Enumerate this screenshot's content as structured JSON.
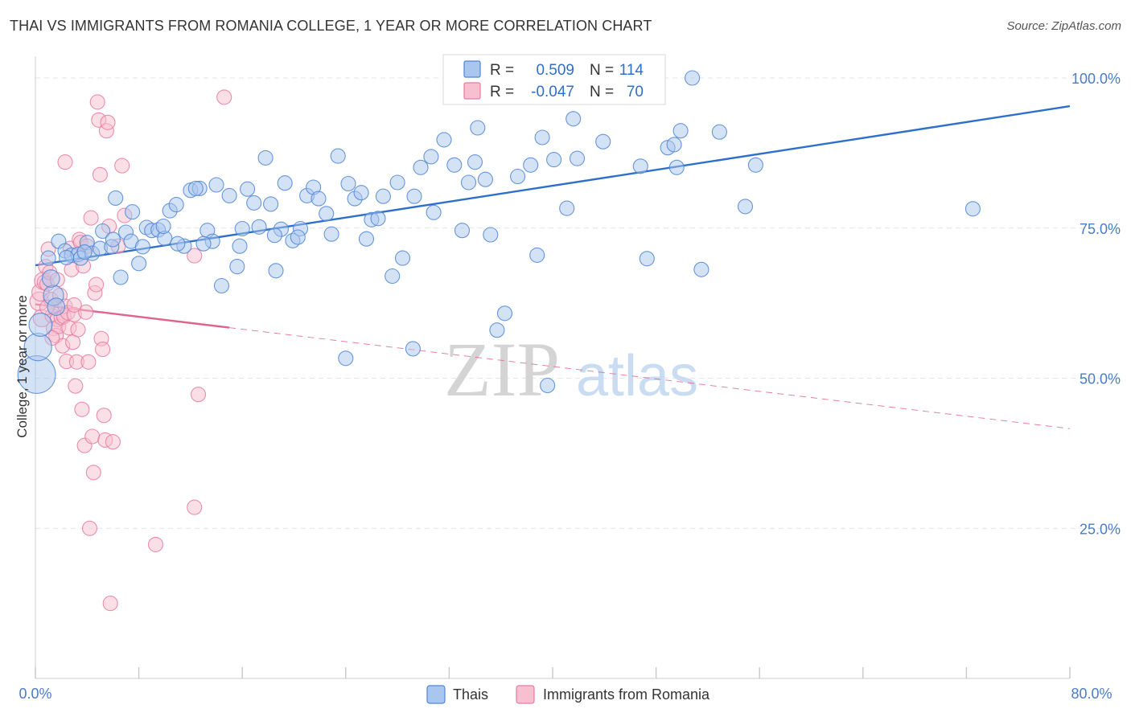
{
  "header": {
    "title": "THAI VS IMMIGRANTS FROM ROMANIA COLLEGE, 1 YEAR OR MORE CORRELATION CHART",
    "source": "Source: ZipAtlas.com"
  },
  "watermark": {
    "zip": "ZIP",
    "atlas": "atlas"
  },
  "colors": {
    "blue_fill": "#a9c6ee",
    "blue_stroke": "#4f86d4",
    "blue_line": "#2f6fcc",
    "pink_fill": "#f7bfd0",
    "pink_stroke": "#e67ba0",
    "pink_line": "#e0628e",
    "tick_text": "#4a7cc9",
    "grid": "#e4e4e4"
  },
  "legend": {
    "rows": [
      {
        "r_label": "R =",
        "r_value": "0.509",
        "n_label": "N =",
        "n_value": "114"
      },
      {
        "r_label": "R =",
        "r_value": "-0.047",
        "n_label": "N =",
        "n_value": "70"
      }
    ]
  },
  "chart_data": {
    "type": "scatter",
    "title": "THAI VS IMMIGRANTS FROM ROMANIA COLLEGE, 1 YEAR OR MORE CORRELATION CHART",
    "xlabel": "",
    "ylabel": "College, 1 year or more",
    "xlim": [
      0,
      80
    ],
    "ylim": [
      0,
      103
    ],
    "x_tick_labels": [
      "0.0%",
      "80.0%"
    ],
    "x_minor_ticks": [
      0,
      8,
      16,
      24,
      32,
      40,
      48,
      56,
      64,
      72,
      80
    ],
    "y_ticks": [
      25,
      50,
      75,
      100
    ],
    "y_tick_labels": [
      "25.0%",
      "50.0%",
      "75.0%",
      "100.0%"
    ],
    "grid": true,
    "legend_position": "top-center",
    "series": [
      {
        "name": "Thais",
        "color": "#a9c6ee",
        "r": 0.509,
        "n": 114,
        "trend": {
          "x": [
            0,
            80
          ],
          "y": [
            68.8,
            95.3
          ],
          "dashed_from": null
        },
        "points": [
          [
            0.1,
            50.6,
            2.6
          ],
          [
            0.2,
            55.2,
            1.9
          ],
          [
            0.4,
            58.9,
            1.6
          ],
          [
            1.4,
            63.8,
            1.4
          ],
          [
            1.6,
            61.9,
            1.2
          ],
          [
            1.2,
            66.6,
            1.2
          ],
          [
            1.0,
            70.0,
            1.0
          ],
          [
            1.8,
            72.8,
            1.0
          ],
          [
            2.3,
            71.2,
            1.0
          ],
          [
            2.8,
            70.5,
            1.0
          ],
          [
            3.3,
            70.6,
            1.0
          ],
          [
            3.5,
            70.0,
            1.0
          ],
          [
            4.0,
            72.6,
            1.0
          ],
          [
            4.4,
            70.8,
            1.0
          ],
          [
            5.0,
            71.6,
            1.0
          ],
          [
            5.2,
            74.5,
            1.0
          ],
          [
            5.9,
            71.9,
            1.0
          ],
          [
            6.2,
            80.0,
            1.0
          ],
          [
            6.6,
            66.8,
            1.0
          ],
          [
            7.0,
            74.3,
            1.0
          ],
          [
            7.4,
            72.8,
            1.0
          ],
          [
            7.5,
            77.7,
            1.0
          ],
          [
            8.0,
            69.1,
            1.0
          ],
          [
            8.3,
            71.9,
            1.0
          ],
          [
            8.6,
            75.1,
            1.0
          ],
          [
            9.0,
            74.6,
            1.0
          ],
          [
            9.5,
            74.7,
            1.0
          ],
          [
            10.0,
            73.3,
            1.0
          ],
          [
            10.4,
            77.9,
            1.0
          ],
          [
            10.9,
            78.9,
            1.0
          ],
          [
            11.5,
            72.0,
            1.0
          ],
          [
            12.0,
            81.3,
            1.0
          ],
          [
            12.7,
            81.6,
            1.0
          ],
          [
            13.3,
            74.6,
            1.0
          ],
          [
            13.7,
            72.8,
            1.0
          ],
          [
            14.0,
            82.2,
            1.0
          ],
          [
            14.4,
            65.4,
            1.0
          ],
          [
            15.0,
            80.4,
            1.0
          ],
          [
            15.6,
            68.6,
            1.0
          ],
          [
            16.0,
            74.9,
            1.0
          ],
          [
            16.4,
            81.5,
            1.0
          ],
          [
            16.9,
            79.2,
            1.0
          ],
          [
            17.3,
            75.2,
            1.0
          ],
          [
            17.8,
            86.7,
            1.0
          ],
          [
            18.2,
            79.0,
            1.0
          ],
          [
            18.6,
            67.9,
            1.0
          ],
          [
            19.0,
            74.8,
            1.0
          ],
          [
            19.3,
            82.5,
            1.0
          ],
          [
            19.9,
            72.9,
            1.0
          ],
          [
            20.5,
            74.9,
            1.0
          ],
          [
            21.0,
            80.4,
            1.0
          ],
          [
            21.5,
            81.8,
            1.0
          ],
          [
            21.9,
            79.9,
            1.0
          ],
          [
            22.5,
            77.4,
            1.0
          ],
          [
            22.9,
            74.0,
            1.0
          ],
          [
            23.4,
            87.0,
            1.0
          ],
          [
            24.2,
            82.4,
            1.0
          ],
          [
            24.7,
            79.9,
            1.0
          ],
          [
            25.2,
            80.9,
            1.0
          ],
          [
            25.6,
            73.2,
            1.0
          ],
          [
            26.0,
            76.4,
            1.0
          ],
          [
            26.5,
            76.6,
            1.0
          ],
          [
            26.9,
            80.3,
            1.0
          ],
          [
            27.6,
            67.0,
            1.0
          ],
          [
            28.0,
            82.6,
            1.0
          ],
          [
            28.4,
            70.0,
            1.0
          ],
          [
            29.3,
            80.3,
            1.0
          ],
          [
            29.8,
            85.1,
            1.0
          ],
          [
            30.6,
            86.9,
            1.0
          ],
          [
            30.8,
            77.6,
            1.0
          ],
          [
            31.6,
            89.7,
            1.0
          ],
          [
            32.4,
            85.5,
            1.0
          ],
          [
            33.0,
            74.6,
            1.0
          ],
          [
            33.5,
            82.6,
            1.0
          ],
          [
            34.0,
            86.0,
            1.0
          ],
          [
            34.2,
            91.7,
            1.0
          ],
          [
            34.8,
            83.1,
            1.0
          ],
          [
            35.2,
            73.9,
            1.0
          ],
          [
            35.7,
            58.0,
            1.0
          ],
          [
            36.3,
            60.8,
            1.0
          ],
          [
            37.3,
            83.6,
            1.0
          ],
          [
            38.3,
            85.5,
            1.0
          ],
          [
            38.8,
            70.5,
            1.0
          ],
          [
            39.2,
            90.1,
            1.0
          ],
          [
            39.6,
            48.8,
            1.0
          ],
          [
            40.1,
            86.4,
            1.0
          ],
          [
            41.1,
            78.3,
            1.0
          ],
          [
            41.6,
            93.2,
            1.0
          ],
          [
            41.9,
            86.6,
            1.0
          ],
          [
            43.9,
            89.4,
            1.0
          ],
          [
            46.8,
            85.3,
            1.0
          ],
          [
            47.3,
            69.9,
            1.0
          ],
          [
            48.9,
            88.4,
            1.0
          ],
          [
            49.4,
            88.9,
            1.0
          ],
          [
            49.6,
            85.1,
            1.0
          ],
          [
            49.9,
            91.2,
            1.0
          ],
          [
            50.8,
            100.0,
            1.0
          ],
          [
            51.5,
            68.1,
            1.0
          ],
          [
            52.9,
            91.0,
            1.0
          ],
          [
            54.9,
            78.6,
            1.0
          ],
          [
            55.7,
            85.5,
            1.0
          ],
          [
            72.5,
            78.2,
            1.0
          ],
          [
            24.0,
            53.3,
            1.0
          ],
          [
            29.2,
            54.9,
            1.0
          ],
          [
            6.0,
            73.1,
            1.0
          ],
          [
            9.9,
            75.3,
            1.0
          ],
          [
            11.0,
            72.4,
            1.0
          ],
          [
            13.0,
            72.4,
            1.0
          ],
          [
            15.8,
            72.0,
            1.0
          ],
          [
            18.5,
            73.8,
            1.0
          ],
          [
            20.3,
            73.5,
            1.0
          ],
          [
            2.4,
            70.1,
            1.0
          ],
          [
            3.8,
            71.0,
            1.0
          ],
          [
            12.4,
            81.6,
            1.0
          ]
        ]
      },
      {
        "name": "Immigrants from Romania",
        "color": "#f7bfd0",
        "r": -0.047,
        "n": 70,
        "trend": {
          "x": [
            0,
            80
          ],
          "y": [
            62.3,
            41.6
          ],
          "dashed_from": 15.0
        },
        "points": [
          [
            0.3,
            62.8,
            1.3
          ],
          [
            0.4,
            64.3,
            1.2
          ],
          [
            0.5,
            60.0,
            1.2
          ],
          [
            0.6,
            66.2,
            1.2
          ],
          [
            0.7,
            66.0,
            1.0
          ],
          [
            0.8,
            68.6,
            1.0
          ],
          [
            0.9,
            65.7,
            1.0
          ],
          [
            1.0,
            71.5,
            1.0
          ],
          [
            1.1,
            67.6,
            1.0
          ],
          [
            1.2,
            63.1,
            1.0
          ],
          [
            1.3,
            60.4,
            1.0
          ],
          [
            1.4,
            58.3,
            1.0
          ],
          [
            1.5,
            61.9,
            1.0
          ],
          [
            1.6,
            57.1,
            1.0
          ],
          [
            1.7,
            59.8,
            1.0
          ],
          [
            1.8,
            58.6,
            1.0
          ],
          [
            1.9,
            63.8,
            1.0
          ],
          [
            2.0,
            60.1,
            1.0
          ],
          [
            2.1,
            55.4,
            1.0
          ],
          [
            2.2,
            60.3,
            1.0
          ],
          [
            2.3,
            62.0,
            1.0
          ],
          [
            2.4,
            52.8,
            1.0
          ],
          [
            2.5,
            60.9,
            1.0
          ],
          [
            2.6,
            58.4,
            1.0
          ],
          [
            2.7,
            71.6,
            1.0
          ],
          [
            2.8,
            68.1,
            1.0
          ],
          [
            2.9,
            56.0,
            1.0
          ],
          [
            3.0,
            60.6,
            1.0
          ],
          [
            3.1,
            48.7,
            1.0
          ],
          [
            3.2,
            52.7,
            1.0
          ],
          [
            3.3,
            58.1,
            1.0
          ],
          [
            3.4,
            73.1,
            1.0
          ],
          [
            3.5,
            72.6,
            1.0
          ],
          [
            3.6,
            44.8,
            1.0
          ],
          [
            3.7,
            68.7,
            1.0
          ],
          [
            3.8,
            38.8,
            1.0
          ],
          [
            3.9,
            61.0,
            1.0
          ],
          [
            4.0,
            72.0,
            1.0
          ],
          [
            4.1,
            52.7,
            1.0
          ],
          [
            4.2,
            25.0,
            1.0
          ],
          [
            4.3,
            76.7,
            1.0
          ],
          [
            4.4,
            40.3,
            1.0
          ],
          [
            4.5,
            34.3,
            1.0
          ],
          [
            4.6,
            64.2,
            1.0
          ],
          [
            4.7,
            65.6,
            1.0
          ],
          [
            4.8,
            96.0,
            1.0
          ],
          [
            4.9,
            93.0,
            1.0
          ],
          [
            5.0,
            83.9,
            1.0
          ],
          [
            5.1,
            56.6,
            1.0
          ],
          [
            5.2,
            54.8,
            1.0
          ],
          [
            5.3,
            43.8,
            1.0
          ],
          [
            5.4,
            39.7,
            1.0
          ],
          [
            5.5,
            91.2,
            1.0
          ],
          [
            5.6,
            92.6,
            1.0
          ],
          [
            5.7,
            75.3,
            1.0
          ],
          [
            5.8,
            12.5,
            1.0
          ],
          [
            6.0,
            39.4,
            1.0
          ],
          [
            6.4,
            72.0,
            1.0
          ],
          [
            6.7,
            85.4,
            1.0
          ],
          [
            6.9,
            77.1,
            1.0
          ],
          [
            9.3,
            22.3,
            1.0
          ],
          [
            12.3,
            70.4,
            1.0
          ],
          [
            12.3,
            28.5,
            1.0
          ],
          [
            12.6,
            47.3,
            1.0
          ],
          [
            14.6,
            96.8,
            1.0
          ],
          [
            2.3,
            86.0,
            1.0
          ],
          [
            1.7,
            66.4,
            1.0
          ],
          [
            0.9,
            61.8,
            1.0
          ],
          [
            1.3,
            56.7,
            1.0
          ],
          [
            3.0,
            62.2,
            1.0
          ]
        ]
      }
    ]
  }
}
